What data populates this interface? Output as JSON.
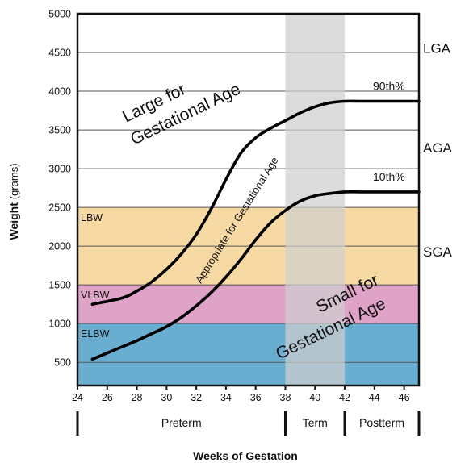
{
  "chart_data": {
    "type": "line",
    "title": "",
    "xlabel": "Weeks of Gestation",
    "ylabel": "Weight",
    "ylabel_unit": "(grams)",
    "xlim": [
      24,
      47
    ],
    "ylim": [
      200,
      5000
    ],
    "x_ticks": [
      24,
      26,
      28,
      30,
      32,
      34,
      36,
      38,
      40,
      42,
      44,
      46
    ],
    "y_ticks": [
      500,
      1000,
      1500,
      2000,
      2500,
      3000,
      3500,
      4000,
      4500,
      5000
    ],
    "grid": true,
    "series": [
      {
        "name": "90th%",
        "x": [
          25,
          27,
          28,
          29,
          30,
          31,
          32,
          33,
          34,
          35,
          36,
          37,
          38,
          39,
          40,
          41,
          42,
          43,
          44,
          45,
          46,
          47
        ],
        "y": [
          1250,
          1330,
          1420,
          1540,
          1700,
          1900,
          2150,
          2480,
          2860,
          3200,
          3400,
          3520,
          3620,
          3720,
          3800,
          3850,
          3870,
          3870,
          3870,
          3870,
          3870,
          3870
        ]
      },
      {
        "name": "10th%",
        "x": [
          25,
          26,
          27,
          28,
          29,
          30,
          31,
          32,
          33,
          34,
          35,
          36,
          37,
          38,
          39,
          40,
          41,
          42,
          43,
          44,
          45,
          46,
          47
        ],
        "y": [
          540,
          620,
          700,
          780,
          870,
          960,
          1080,
          1230,
          1400,
          1600,
          1830,
          2080,
          2300,
          2460,
          2580,
          2650,
          2680,
          2700,
          2700,
          2700,
          2700,
          2700,
          2700
        ]
      }
    ],
    "bands": [
      {
        "label": "LBW",
        "y0": 1500,
        "y1": 2500,
        "color": "#f7d9a3"
      },
      {
        "label": "VLBW",
        "y0": 1000,
        "y1": 1500,
        "color": "#dfa3c8"
      },
      {
        "label": "ELBW",
        "y0": 200,
        "y1": 1000,
        "color": "#69aed1"
      }
    ],
    "term_band": {
      "x0": 38,
      "x1": 42,
      "color": "#cfcfcf",
      "opacity": 0.72
    },
    "side_labels": [
      {
        "label": "LGA",
        "y": 4560
      },
      {
        "label": "AGA",
        "y": 3270
      },
      {
        "label": "SGA",
        "y": 1930
      }
    ],
    "region_labels": {
      "large_line1": "Large for",
      "large_line2": "Gestational Age",
      "appropriate": "Appropriate for Gestational Age",
      "small_line1": "Small for",
      "small_line2": "Gestational Age"
    },
    "periods": [
      {
        "label": "Preterm",
        "x0": 24,
        "x1": 38
      },
      {
        "label": "Term",
        "x0": 38,
        "x1": 42
      },
      {
        "label": "Postterm",
        "x0": 42,
        "x1": 47
      }
    ]
  },
  "colors": {
    "frame": "#111111",
    "curve": "#000000",
    "grid": "#555555"
  }
}
